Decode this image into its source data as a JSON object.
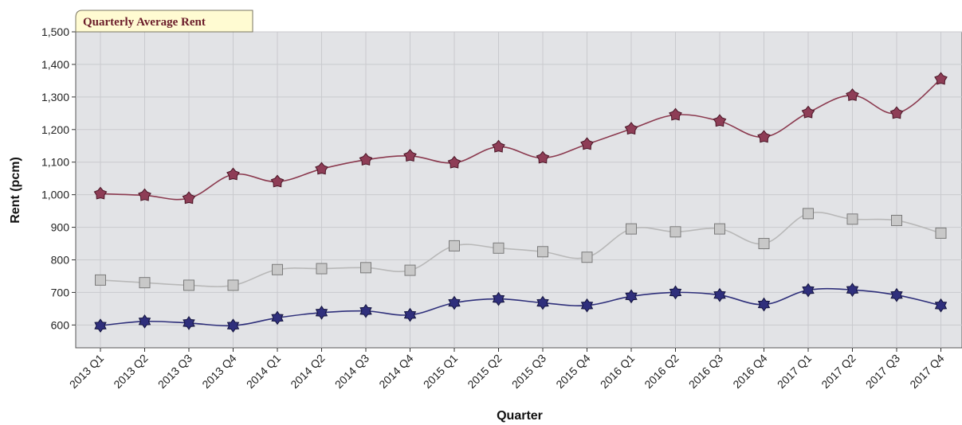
{
  "chart_data": {
    "type": "line",
    "title": "Quarterly Average Rent",
    "xlabel": "Quarter",
    "ylabel": "Rent (pcm)",
    "ylim": [
      530,
      1500
    ],
    "yticks": [
      600,
      700,
      800,
      900,
      1000,
      1100,
      1200,
      1300,
      1400,
      1500
    ],
    "ytick_labels": [
      "600",
      "700",
      "800",
      "900",
      "1,000",
      "1,100",
      "1,200",
      "1,300",
      "1,400",
      "1,500"
    ],
    "grid": true,
    "categories": [
      "2013 Q1",
      "2013 Q2",
      "2013 Q3",
      "2013 Q4",
      "2014 Q1",
      "2014 Q2",
      "2014 Q3",
      "2014 Q4",
      "2015 Q1",
      "2015 Q2",
      "2015 Q3",
      "2015 Q4",
      "2016 Q1",
      "2016 Q2",
      "2016 Q3",
      "2016 Q4",
      "2017 Q1",
      "2017 Q2",
      "2017 Q3",
      "2017 Q4"
    ],
    "series": [
      {
        "color": "#8b3a4f",
        "marker": "pentagon",
        "values": [
          1003,
          998,
          989,
          1062,
          1040,
          1079,
          1107,
          1119,
          1098,
          1147,
          1113,
          1155,
          1202,
          1245,
          1226,
          1177,
          1252,
          1305,
          1250,
          1355
        ]
      },
      {
        "color": "#b8b8b8",
        "marker": "square",
        "values": [
          738,
          730,
          722,
          722,
          770,
          773,
          776,
          768,
          843,
          836,
          825,
          808,
          895,
          886,
          895,
          850,
          942,
          925,
          921,
          882
        ]
      },
      {
        "color": "#2e2f7a",
        "marker": "star",
        "values": [
          598,
          611,
          606,
          598,
          622,
          638,
          643,
          631,
          668,
          680,
          668,
          660,
          688,
          700,
          692,
          663,
          707,
          708,
          692,
          660
        ]
      }
    ]
  }
}
